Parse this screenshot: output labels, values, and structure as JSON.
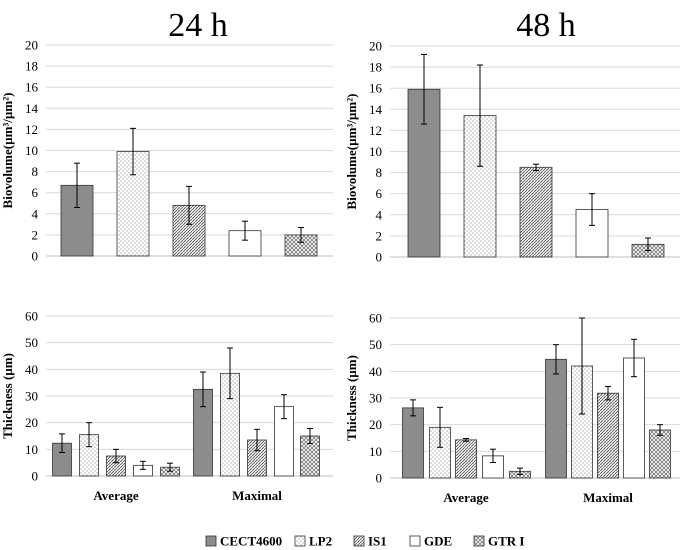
{
  "column_titles": [
    "24 h",
    "48 h"
  ],
  "series_names": [
    "CECT4600",
    "LP2",
    "IS1",
    "GDE",
    "GTR I"
  ],
  "colors": {
    "solid": "#8c8c8c",
    "grid": "#d9d9d9",
    "stroke": "#000000",
    "white": "#ffffff"
  },
  "chart_data": [
    {
      "type": "bar",
      "title": "24 h",
      "ylabel": "Biovolume(µm³/µm²)",
      "ylim": [
        0,
        20
      ],
      "yticks": [
        0,
        2,
        4,
        6,
        8,
        10,
        12,
        14,
        16,
        18,
        20
      ],
      "categories": [
        ""
      ],
      "series": [
        {
          "name": "CECT4600",
          "values": [
            6.7
          ],
          "errors": [
            2.1
          ]
        },
        {
          "name": "LP2",
          "values": [
            9.9
          ],
          "errors": [
            2.2
          ]
        },
        {
          "name": "IS1",
          "values": [
            4.8
          ],
          "errors": [
            1.8
          ]
        },
        {
          "name": "GDE",
          "values": [
            2.4
          ],
          "errors": [
            0.9
          ]
        },
        {
          "name": "GTR I",
          "values": [
            2.0
          ],
          "errors": [
            0.7
          ]
        }
      ]
    },
    {
      "type": "bar",
      "title": "48 h",
      "ylabel": "Biovolume(µm³/µm²)",
      "ylim": [
        0,
        20
      ],
      "yticks": [
        0,
        2,
        4,
        6,
        8,
        10,
        12,
        14,
        16,
        18,
        20
      ],
      "categories": [
        ""
      ],
      "series": [
        {
          "name": "CECT4600",
          "values": [
            15.9
          ],
          "errors": [
            3.3
          ]
        },
        {
          "name": "LP2",
          "values": [
            13.4
          ],
          "errors": [
            4.8
          ]
        },
        {
          "name": "IS1",
          "values": [
            8.5
          ],
          "errors": [
            0.3
          ]
        },
        {
          "name": "GDE",
          "values": [
            4.5
          ],
          "errors": [
            1.5
          ]
        },
        {
          "name": "GTR I",
          "values": [
            1.2
          ],
          "errors": [
            0.6
          ]
        }
      ]
    },
    {
      "type": "bar",
      "title": "24 h",
      "ylabel": "Thickness (µm)",
      "ylim": [
        0,
        60
      ],
      "yticks": [
        0,
        10,
        20,
        30,
        40,
        50,
        60
      ],
      "categories": [
        "Average",
        "Maximal"
      ],
      "series": [
        {
          "name": "CECT4600",
          "values": [
            12.3,
            32.5
          ],
          "errors": [
            3.5,
            6.5
          ]
        },
        {
          "name": "LP2",
          "values": [
            15.5,
            38.5
          ],
          "errors": [
            4.5,
            9.5
          ]
        },
        {
          "name": "IS1",
          "values": [
            7.5,
            13.5
          ],
          "errors": [
            2.5,
            4.0
          ]
        },
        {
          "name": "GDE",
          "values": [
            4.0,
            26.0
          ],
          "errors": [
            1.5,
            4.5
          ]
        },
        {
          "name": "GTR I",
          "values": [
            3.3,
            15.0
          ],
          "errors": [
            1.5,
            2.8
          ]
        }
      ]
    },
    {
      "type": "bar",
      "title": "48 h",
      "ylabel": "Thickness (µm)",
      "ylim": [
        0,
        60
      ],
      "yticks": [
        0,
        10,
        20,
        30,
        40,
        50,
        60
      ],
      "categories": [
        "Average",
        "Maximal"
      ],
      "series": [
        {
          "name": "CECT4600",
          "values": [
            26.3,
            44.5
          ],
          "errors": [
            3.0,
            5.5
          ]
        },
        {
          "name": "LP2",
          "values": [
            19.0,
            42.0
          ],
          "errors": [
            7.5,
            18.0
          ]
        },
        {
          "name": "IS1",
          "values": [
            14.3,
            31.8
          ],
          "errors": [
            0.5,
            2.5
          ]
        },
        {
          "name": "GDE",
          "values": [
            8.3,
            45.0
          ],
          "errors": [
            2.5,
            7.0
          ]
        },
        {
          "name": "GTR I",
          "values": [
            2.5,
            18.0
          ],
          "errors": [
            1.2,
            2.0
          ]
        }
      ]
    }
  ]
}
